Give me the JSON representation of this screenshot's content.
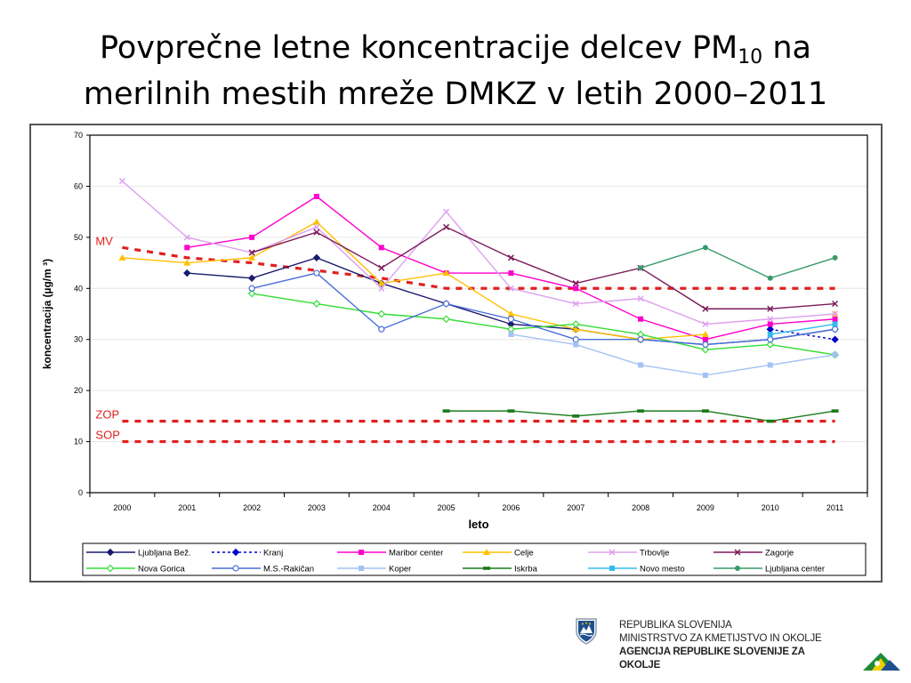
{
  "title": {
    "line1_pre": "Povprečne letne koncentracije delcev PM",
    "line1_sub": "10",
    "line1_post": " na",
    "line2": "merilnih mestih mreže DMKZ v letih 2000–2011"
  },
  "chart_data": {
    "type": "line",
    "xlabel": "leto",
    "ylabel": "koncentracija (µg/m ³)",
    "ylim": [
      0,
      70
    ],
    "yticks": [
      0,
      10,
      20,
      30,
      40,
      50,
      60,
      70
    ],
    "categories": [
      "2000",
      "2001",
      "2002",
      "2003",
      "2004",
      "2005",
      "2006",
      "2007",
      "2008",
      "2009",
      "2010",
      "2011"
    ],
    "legend_position": "bottom",
    "grid": "horizontal",
    "reference_lines": [
      {
        "label": "MV",
        "values": [
          48,
          46,
          45,
          43.5,
          42,
          40,
          40,
          40,
          40,
          40,
          40,
          40
        ],
        "color": "#e02020"
      },
      {
        "label": "ZOP",
        "values": [
          14,
          14,
          14,
          14,
          14,
          14,
          14,
          14,
          14,
          14,
          14,
          14
        ],
        "color": "#e02020"
      },
      {
        "label": "SOP",
        "values": [
          10,
          10,
          10,
          10,
          10,
          10,
          10,
          10,
          10,
          10,
          10,
          10
        ],
        "color": "#e02020"
      }
    ],
    "series": [
      {
        "name": "Ljubljana Bež.",
        "color": "#1a1a6e",
        "marker": "diamond",
        "dash": false,
        "values": [
          null,
          43,
          42,
          46,
          41,
          37,
          33,
          32,
          30,
          29,
          30,
          32
        ]
      },
      {
        "name": "Kranj",
        "color": "#0000cc",
        "marker": "diamond",
        "dash": true,
        "values": [
          null,
          null,
          null,
          null,
          null,
          null,
          null,
          null,
          null,
          null,
          32,
          30
        ]
      },
      {
        "name": "Maribor center",
        "color": "#ff00cc",
        "marker": "square",
        "dash": false,
        "values": [
          null,
          48,
          50,
          58,
          48,
          43,
          43,
          40,
          34,
          30,
          33,
          34
        ]
      },
      {
        "name": "Celje",
        "color": "#ffc000",
        "marker": "triangle",
        "dash": false,
        "values": [
          46,
          45,
          46,
          53,
          41,
          43,
          35,
          32,
          30,
          31,
          null,
          35
        ]
      },
      {
        "name": "Trbovlje",
        "color": "#dda0ee",
        "marker": "x",
        "dash": false,
        "values": [
          61,
          50,
          47,
          52,
          40,
          55,
          40,
          37,
          38,
          33,
          34,
          35
        ]
      },
      {
        "name": "Zagorje",
        "color": "#7b1a5a",
        "marker": "x",
        "dash": false,
        "values": [
          null,
          null,
          47,
          51,
          44,
          52,
          46,
          41,
          44,
          36,
          36,
          37
        ]
      },
      {
        "name": "Nova Gorica",
        "color": "#33dd33",
        "marker": "diamond-open",
        "dash": false,
        "values": [
          null,
          null,
          39,
          37,
          35,
          34,
          32,
          33,
          31,
          28,
          29,
          27
        ]
      },
      {
        "name": "M.S.-Rakičan",
        "color": "#4a6fd8",
        "marker": "circle-open",
        "dash": false,
        "values": [
          null,
          null,
          40,
          43,
          32,
          37,
          34,
          30,
          30,
          29,
          30,
          32
        ]
      },
      {
        "name": "Koper",
        "color": "#a4c2f4",
        "marker": "square",
        "dash": false,
        "values": [
          null,
          null,
          null,
          null,
          null,
          null,
          31,
          29,
          25,
          23,
          25,
          27
        ]
      },
      {
        "name": "Iskrba",
        "color": "#1a7a1a",
        "marker": "dash",
        "dash": false,
        "values": [
          null,
          null,
          null,
          null,
          null,
          16,
          16,
          15,
          16,
          16,
          14,
          16
        ]
      },
      {
        "name": "Novo mesto",
        "color": "#33bbee",
        "marker": "square",
        "dash": false,
        "values": [
          null,
          null,
          null,
          null,
          null,
          null,
          null,
          null,
          null,
          null,
          31,
          33
        ]
      },
      {
        "name": "Ljubljana center",
        "color": "#3a9a6a",
        "marker": "circle",
        "dash": false,
        "values": [
          null,
          null,
          null,
          null,
          null,
          null,
          null,
          null,
          44,
          48,
          42,
          46
        ]
      }
    ]
  },
  "footer": {
    "line1": "REPUBLIKA SLOVENIJA",
    "line2": "MINISTRSTVO ZA KMETIJSTVO IN OKOLJE",
    "line3": "AGENCIJA REPUBLIKE SLOVENIJE ZA",
    "line4": "OKOLJE",
    "crest_icon": "slovenia-coat-of-arms-icon",
    "logo_icon": "arso-triangle-logo-icon"
  }
}
